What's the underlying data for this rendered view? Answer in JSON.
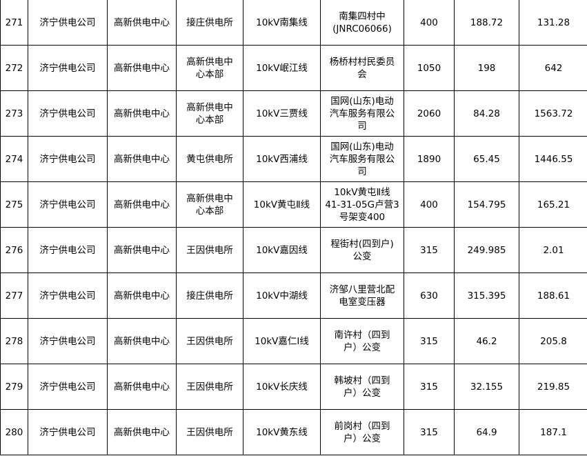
{
  "rows": [
    {
      "no": "271",
      "company": "济宁供电公司",
      "center": "高新供电中心",
      "station": "接庄供电所",
      "line": "10kV南集线",
      "transformer": "南集四村中\n(JNRC06066)",
      "capacity": "400",
      "v1": "188.72",
      "v2": "131.28"
    },
    {
      "no": "272",
      "company": "济宁供电公司",
      "center": "高新供电中心",
      "station": "高新供电中\n心本部",
      "line": "10kV岷江线",
      "transformer": "杨桥村村民委员\n会",
      "capacity": "1050",
      "v1": "198",
      "v2": "642"
    },
    {
      "no": "273",
      "company": "济宁供电公司",
      "center": "高新供电中心",
      "station": "高新供电中\n心本部",
      "line": "10kV三贾线",
      "transformer": "国网(山东)电动\n汽车服务有限公\n司",
      "capacity": "2060",
      "v1": "84.28",
      "v2": "1563.72"
    },
    {
      "no": "274",
      "company": "济宁供电公司",
      "center": "高新供电中心",
      "station": "黄屯供电所",
      "line": "10kV西浦线",
      "transformer": "国网(山东)电动\n汽车服务有限公\n司",
      "capacity": "1890",
      "v1": "65.45",
      "v2": "1446.55"
    },
    {
      "no": "275",
      "company": "济宁供电公司",
      "center": "高新供电中心",
      "station": "高新供电中\n心本部",
      "line": "10kV黄屯Ⅱ线",
      "transformer": "10kV黄屯Ⅱ线\n41-31-05G卢营3\n号架变400",
      "capacity": "400",
      "v1": "154.795",
      "v2": "165.21"
    },
    {
      "no": "276",
      "company": "济宁供电公司",
      "center": "高新供电中心",
      "station": "王因供电所",
      "line": "10kV嘉因线",
      "transformer": "程街村(四到户)\n公变",
      "capacity": "315",
      "v1": "249.985",
      "v2": "2.01"
    },
    {
      "no": "277",
      "company": "济宁供电公司",
      "center": "高新供电中心",
      "station": "接庄供电所",
      "line": "10kV中湖线",
      "transformer": "济邹八里营北配\n电室变压器",
      "capacity": "630",
      "v1": "315.395",
      "v2": "188.61"
    },
    {
      "no": "278",
      "company": "济宁供电公司",
      "center": "高新供电中心",
      "station": "王因供电所",
      "line": "10kV嘉仁Ⅰ线",
      "transformer": "南许村（四到\n户）公变",
      "capacity": "315",
      "v1": "46.2",
      "v2": "205.8"
    },
    {
      "no": "279",
      "company": "济宁供电公司",
      "center": "高新供电中心",
      "station": "王因供电所",
      "line": "10kV长庆线",
      "transformer": "韩坡村（四到\n户）公变",
      "capacity": "315",
      "v1": "32.155",
      "v2": "219.85"
    },
    {
      "no": "280",
      "company": "济宁供电公司",
      "center": "高新供电中心",
      "station": "王因供电所",
      "line": "10kV黄东线",
      "transformer": "前岗村（四到\n户）公变",
      "capacity": "315",
      "v1": "64.9",
      "v2": "187.1"
    }
  ]
}
